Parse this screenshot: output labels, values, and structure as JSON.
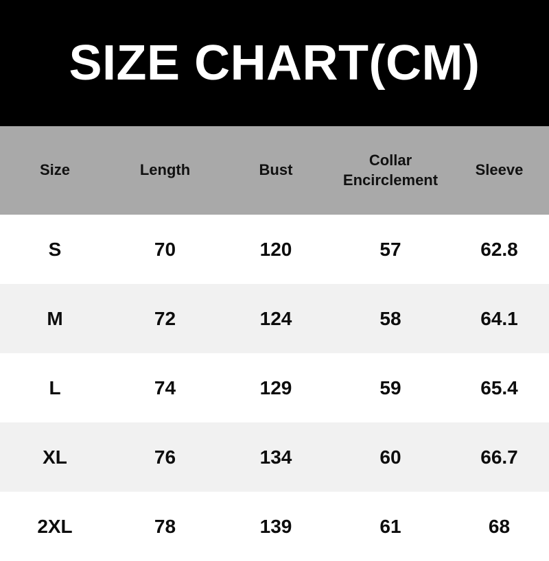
{
  "page": {
    "title": "SIZE CHART(CM)"
  },
  "colors": {
    "banner_bg": "#000000",
    "banner_text": "#ffffff",
    "header_bg": "#a9a9a9",
    "row_bg": "#ffffff",
    "row_alt_bg": "#f1f1f1",
    "text": "#0d0d0d"
  },
  "chart_data": {
    "type": "table",
    "title": "SIZE CHART(CM)",
    "unit": "CM",
    "columns": [
      "Size",
      "Length",
      "Bust",
      "Collar Encirclement",
      "Sleeve"
    ],
    "rows": [
      {
        "size": "S",
        "length": "70",
        "bust": "120",
        "collar_encirclement": "57",
        "sleeve": "62.8"
      },
      {
        "size": "M",
        "length": "72",
        "bust": "124",
        "collar_encirclement": "58",
        "sleeve": "64.1"
      },
      {
        "size": "L",
        "length": "74",
        "bust": "129",
        "collar_encirclement": "59",
        "sleeve": "65.4"
      },
      {
        "size": "XL",
        "length": "76",
        "bust": "134",
        "collar_encirclement": "60",
        "sleeve": "66.7"
      },
      {
        "size": "2XL",
        "length": "78",
        "bust": "139",
        "collar_encirclement": "61",
        "sleeve": "68"
      }
    ]
  }
}
